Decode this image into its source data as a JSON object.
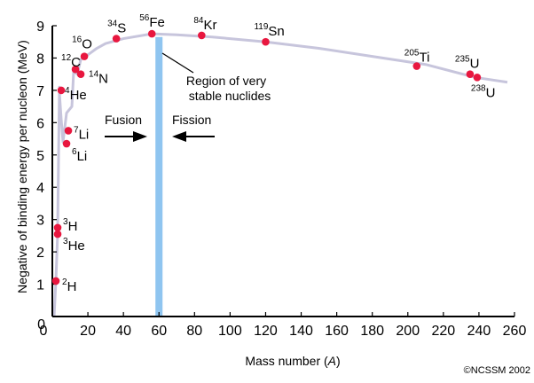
{
  "chart_data": {
    "type": "line",
    "title": "",
    "xlabel": "Mass number (A)",
    "xlabel_plain": "Mass number (",
    "xlabel_var": "A",
    "xlabel_close": ")",
    "ylabel": "Negative of binding energy per nucleon (MeV)",
    "xlim": [
      0,
      260
    ],
    "ylim": [
      0,
      9
    ],
    "x_ticks": [
      "0",
      "20",
      "40",
      "60",
      "80",
      "100",
      "120",
      "140",
      "160",
      "180",
      "200",
      "220",
      "240",
      "260"
    ],
    "y_ticks": [
      "0",
      "1",
      "2",
      "3",
      "4",
      "5",
      "6",
      "7",
      "8",
      "9"
    ],
    "curve": {
      "x": [
        1,
        2,
        3,
        3,
        4,
        4,
        5,
        6,
        8,
        11,
        12,
        14,
        16,
        20,
        25,
        30,
        40,
        56,
        70,
        90,
        120,
        150,
        180,
        210,
        238,
        256
      ],
      "y": [
        0,
        1.1,
        2.6,
        2.8,
        7.1,
        6.9,
        6.1,
        5.4,
        6.3,
        6.5,
        7.6,
        7.5,
        7.95,
        8.1,
        8.3,
        8.45,
        8.6,
        8.75,
        8.72,
        8.65,
        8.5,
        8.3,
        8.05,
        7.8,
        7.4,
        7.25
      ]
    },
    "points": [
      {
        "mass": "2",
        "symbol": "H",
        "x": 2,
        "y": 1.1
      },
      {
        "mass": "3",
        "symbol": "He",
        "x": 3,
        "y": 2.55
      },
      {
        "mass": "3",
        "symbol": "H",
        "x": 3,
        "y": 2.75
      },
      {
        "mass": "4",
        "symbol": "He",
        "x": 5,
        "y": 7.0
      },
      {
        "mass": "6",
        "symbol": "Li",
        "x": 8,
        "y": 5.35
      },
      {
        "mass": "7",
        "symbol": "Li",
        "x": 9,
        "y": 5.75
      },
      {
        "mass": "12",
        "symbol": "C",
        "x": 13,
        "y": 7.65
      },
      {
        "mass": "14",
        "symbol": "N",
        "x": 16,
        "y": 7.5
      },
      {
        "mass": "16",
        "symbol": "O",
        "x": 18,
        "y": 8.05
      },
      {
        "mass": "34",
        "symbol": "S",
        "x": 36,
        "y": 8.6
      },
      {
        "mass": "56",
        "symbol": "Fe",
        "x": 56,
        "y": 8.75
      },
      {
        "mass": "84",
        "symbol": "Kr",
        "x": 84,
        "y": 8.7
      },
      {
        "mass": "119",
        "symbol": "Sn",
        "x": 120,
        "y": 8.5
      },
      {
        "mass": "205",
        "symbol": "Ti",
        "x": 205,
        "y": 7.75
      },
      {
        "mass": "235",
        "symbol": "U",
        "x": 235,
        "y": 7.5
      },
      {
        "mass": "238",
        "symbol": "U",
        "x": 239,
        "y": 7.4
      }
    ],
    "stable_band": {
      "x_from": 58,
      "x_to": 62,
      "label_line1": "Region of very",
      "label_line2": "stable nuclides"
    },
    "fusion_label": "Fusion",
    "fission_label": "Fission",
    "copyright": "©NCSSM 2002",
    "colors": {
      "curve": "#c7c5dc",
      "point": "#e8173f",
      "band": "#8fc5f0",
      "axis": "#000000"
    }
  }
}
